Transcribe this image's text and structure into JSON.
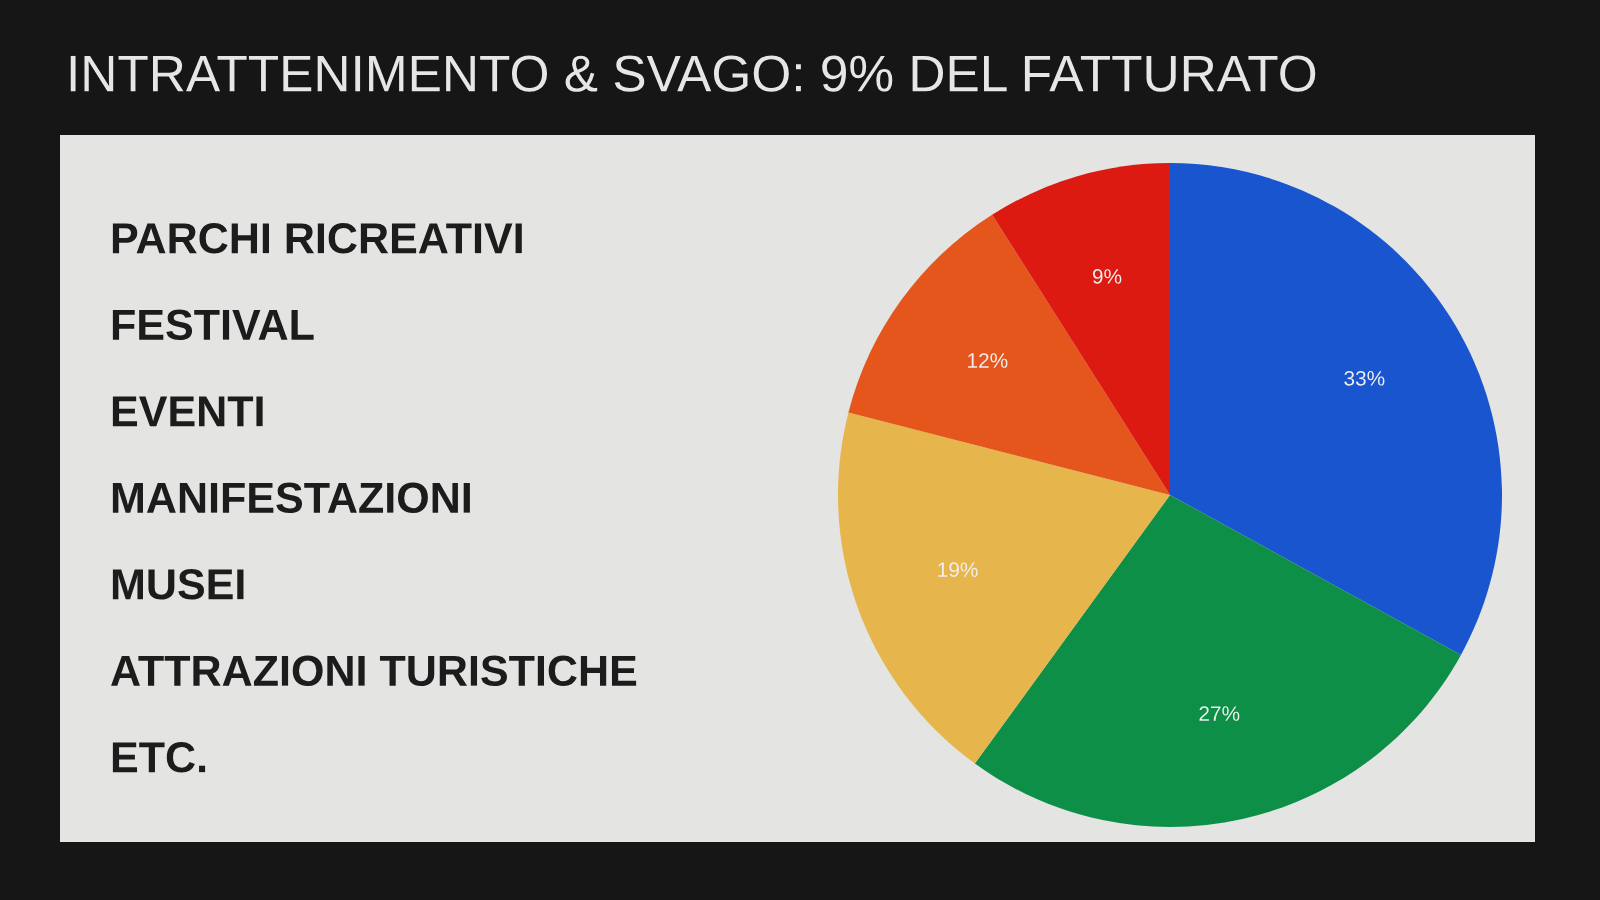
{
  "chart_data": {
    "type": "pie",
    "title": "INTRATTENIMENTO & SVAGO: 9% DEL FATTURATO",
    "categories": [
      null,
      null,
      null,
      null,
      null
    ],
    "values": [
      33,
      27,
      19,
      12,
      9
    ],
    "value_labels": [
      "33%",
      "27%",
      "19%",
      "12%",
      "9%"
    ],
    "colors": [
      "#1a55d0",
      "#0d8f48",
      "#e6b54c",
      "#e5561d",
      "#dd1a12"
    ],
    "annotations": [
      "PARCHI RICREATIVI",
      "FESTIVAL",
      "EVENTI",
      "MANIFESTAZIONI",
      "MUSEI",
      "ATTRAZIONI TURISTICHE",
      "ETC."
    ]
  }
}
